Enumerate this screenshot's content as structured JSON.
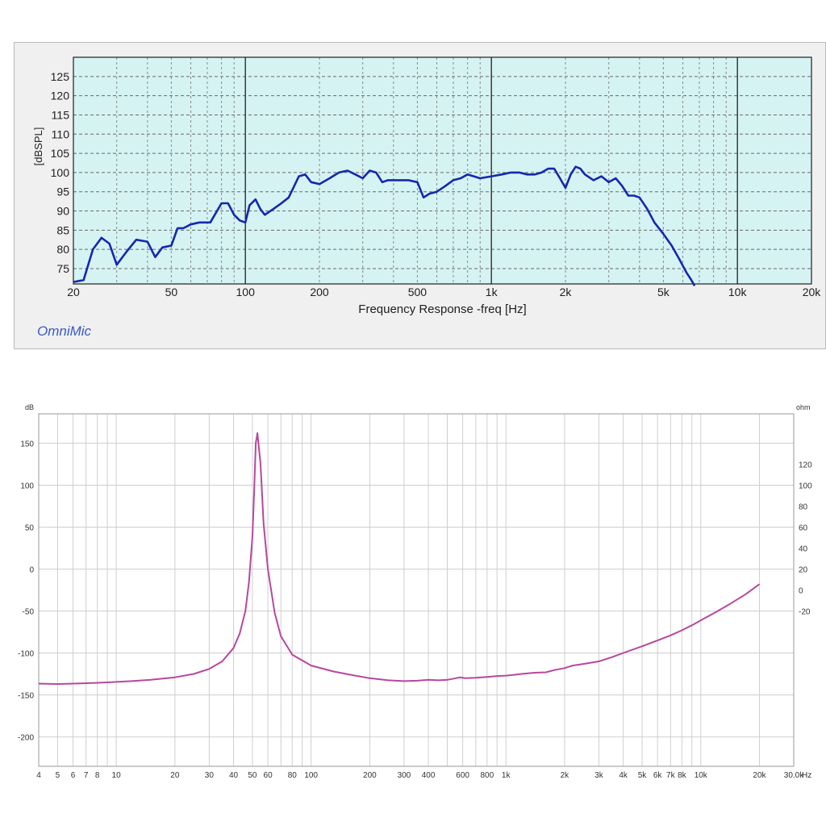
{
  "chart_data": [
    {
      "type": "line",
      "xlabel": "Frequency Response -freq [Hz]",
      "ylabel": "[dBSPL]",
      "x_scale": "log",
      "xlim": [
        20,
        20000
      ],
      "ylim": [
        71,
        130
      ],
      "x_ticks": [
        {
          "value": 20,
          "label": "20"
        },
        {
          "value": 50,
          "label": "50"
        },
        {
          "value": 100,
          "label": "100"
        },
        {
          "value": 200,
          "label": "200"
        },
        {
          "value": 500,
          "label": "500"
        },
        {
          "value": 1000,
          "label": "1k"
        },
        {
          "value": 2000,
          "label": "2k"
        },
        {
          "value": 5000,
          "label": "5k"
        },
        {
          "value": 10000,
          "label": "10k"
        },
        {
          "value": 20000,
          "label": "20k"
        }
      ],
      "y_ticks": [
        75,
        80,
        85,
        90,
        95,
        100,
        105,
        110,
        115,
        120,
        125
      ],
      "grid": true,
      "background": "#d6f3f3",
      "line_color": "#1428b0",
      "brand": "OmniMic",
      "series": [
        {
          "x": [
            20,
            22,
            24,
            26,
            28,
            30,
            33,
            36,
            40,
            43,
            46,
            50,
            53,
            56,
            60,
            65,
            72,
            80,
            85,
            90,
            95,
            100,
            104,
            110,
            115,
            120,
            130,
            140,
            150,
            165,
            175,
            185,
            200,
            220,
            240,
            260,
            280,
            300,
            320,
            340,
            360,
            380,
            400,
            430,
            460,
            500,
            530,
            560,
            600,
            650,
            700,
            750,
            800,
            900,
            1000,
            1100,
            1200,
            1300,
            1400,
            1500,
            1600,
            1700,
            1800,
            1900,
            2000,
            2100,
            2200,
            2300,
            2400,
            2600,
            2800,
            3000,
            3200,
            3400,
            3600,
            3800,
            4000,
            4300,
            4600,
            5000,
            5400,
            5800,
            6200,
            6500,
            6700
          ],
          "values": [
            71.5,
            72,
            80,
            83,
            81.5,
            76,
            79.5,
            82.5,
            82,
            78,
            80.5,
            81,
            85.5,
            85.5,
            86.5,
            87,
            87,
            92,
            92,
            89,
            87.5,
            87,
            91.5,
            93,
            90.5,
            89,
            90.5,
            92,
            93.5,
            99,
            99.5,
            97.5,
            97,
            98.5,
            100,
            100.5,
            99.5,
            98.5,
            100.5,
            100,
            97.5,
            98,
            98,
            98,
            98,
            97.5,
            93.5,
            94.5,
            95,
            96.5,
            98,
            98.5,
            99.5,
            98.5,
            99,
            99.5,
            100,
            100,
            99.5,
            99.5,
            100,
            101,
            101,
            98.5,
            96,
            99.5,
            101.5,
            101,
            99.5,
            98,
            99,
            97.5,
            98.5,
            96.5,
            94,
            94,
            93.5,
            90.5,
            87,
            84,
            81,
            77.5,
            74,
            72,
            70.5
          ]
        }
      ]
    },
    {
      "type": "line",
      "x_scale": "log",
      "xlim": [
        4,
        30000
      ],
      "ylim": [
        -235,
        185
      ],
      "left_unit": "dB",
      "right_unit": "ohm",
      "x_unit": "Hz",
      "x_ticks": [
        {
          "value": 4,
          "label": "4"
        },
        {
          "value": 5,
          "label": "5"
        },
        {
          "value": 6,
          "label": "6"
        },
        {
          "value": 7,
          "label": "7"
        },
        {
          "value": 8,
          "label": "8"
        },
        {
          "value": 10,
          "label": "10"
        },
        {
          "value": 20,
          "label": "20"
        },
        {
          "value": 30,
          "label": "30"
        },
        {
          "value": 40,
          "label": "40"
        },
        {
          "value": 50,
          "label": "50"
        },
        {
          "value": 60,
          "label": "60"
        },
        {
          "value": 80,
          "label": "80"
        },
        {
          "value": 100,
          "label": "100"
        },
        {
          "value": 200,
          "label": "200"
        },
        {
          "value": 300,
          "label": "300"
        },
        {
          "value": 400,
          "label": "400"
        },
        {
          "value": 600,
          "label": "600"
        },
        {
          "value": 800,
          "label": "800"
        },
        {
          "value": 1000,
          "label": "1k"
        },
        {
          "value": 2000,
          "label": "2k"
        },
        {
          "value": 3000,
          "label": "3k"
        },
        {
          "value": 4000,
          "label": "4k"
        },
        {
          "value": 5000,
          "label": "5k"
        },
        {
          "value": 6000,
          "label": "6k"
        },
        {
          "value": 7000,
          "label": "7k"
        },
        {
          "value": 8000,
          "label": "8k"
        },
        {
          "value": 10000,
          "label": "10k"
        },
        {
          "value": 20000,
          "label": "20k"
        },
        {
          "value": 30000,
          "label": "30.0k"
        }
      ],
      "y_ticks_left": [
        150,
        100,
        50,
        0,
        -50,
        -100,
        -150,
        -200
      ],
      "y_ticks_right": [
        {
          "value": 125,
          "label": "120"
        },
        {
          "value": 100,
          "label": "100"
        },
        {
          "value": 75,
          "label": "80"
        },
        {
          "value": 50,
          "label": "60"
        },
        {
          "value": 25,
          "label": "40"
        },
        {
          "value": 0,
          "label": "20"
        },
        {
          "value": -25,
          "label": "0"
        },
        {
          "value": -50,
          "label": "-20"
        }
      ],
      "grid": true,
      "line_color": "#b8479e",
      "series": [
        {
          "x": [
            4,
            5,
            6,
            7,
            8,
            10,
            12,
            15,
            20,
            25,
            30,
            35,
            40,
            43,
            46,
            48,
            50,
            51,
            52,
            53,
            55,
            57,
            60,
            65,
            70,
            80,
            100,
            130,
            160,
            200,
            250,
            300,
            350,
            400,
            450,
            500,
            540,
            580,
            620,
            700,
            800,
            900,
            1000,
            1100,
            1200,
            1400,
            1600,
            1800,
            2000,
            2200,
            2500,
            3000,
            3500,
            4000,
            5000,
            6000,
            7000,
            8000,
            9000,
            10000,
            12000,
            14000,
            17000,
            20000
          ],
          "values": [
            -136.5,
            -137,
            -136.5,
            -136,
            -135.5,
            -134.5,
            -133.5,
            -132,
            -129,
            -125,
            -119,
            -110,
            -94,
            -77,
            -50,
            -15,
            40,
            90,
            150,
            162,
            125,
            55,
            0,
            -52,
            -80,
            -102,
            -115,
            -122,
            -126,
            -130,
            -132.5,
            -133.5,
            -133,
            -132,
            -132.5,
            -132,
            -130.5,
            -129,
            -130,
            -129.5,
            -128.5,
            -127.5,
            -127,
            -126,
            -125,
            -123.5,
            -123,
            -120,
            -118,
            -115,
            -113,
            -110,
            -105,
            -100,
            -92,
            -85,
            -79,
            -73,
            -67,
            -61,
            -51,
            -42,
            -30,
            -18
          ]
        }
      ]
    }
  ]
}
